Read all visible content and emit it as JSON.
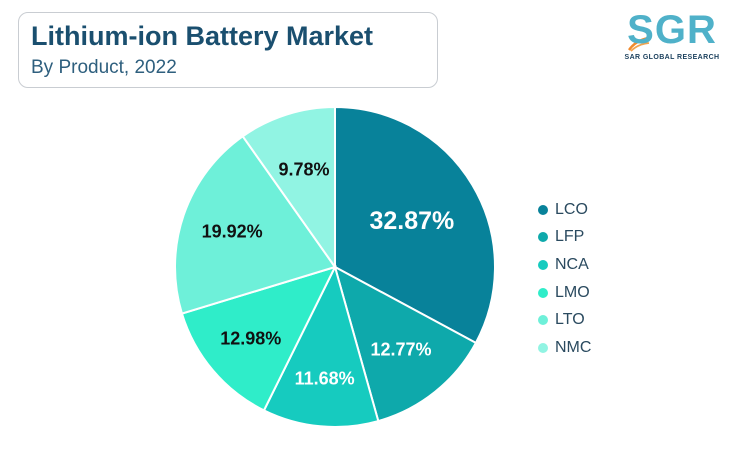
{
  "header": {
    "title": "Lithium-ion Battery Market",
    "subtitle": "By Product, 2022"
  },
  "logo": {
    "text": "SGR",
    "tagline": "SAR GLOBAL RESEARCH"
  },
  "chart_data": {
    "type": "pie",
    "title": "Lithium-ion Battery Market",
    "subtitle": "By Product, 2022",
    "legend_position": "right",
    "slices": [
      {
        "label": "LCO",
        "value": 32.87,
        "display": "32.87%",
        "color": "#08829a",
        "text_color": "#ffffff"
      },
      {
        "label": "LFP",
        "value": 12.77,
        "display": "12.77%",
        "color": "#0ea9ab",
        "text_color": "#ffffff"
      },
      {
        "label": "NCA",
        "value": 11.68,
        "display": "11.68%",
        "color": "#16cbbf",
        "text_color": "#ffffff"
      },
      {
        "label": "LMO",
        "value": 12.98,
        "display": "12.98%",
        "color": "#2fedc9",
        "text_color": "#111111"
      },
      {
        "label": "LTO",
        "value": 19.92,
        "display": "19.92%",
        "color": "#6ef0d9",
        "text_color": "#111111"
      },
      {
        "label": "NMC",
        "value": 9.78,
        "display": "9.78%",
        "color": "#91f4e3",
        "text_color": "#111111"
      }
    ]
  }
}
